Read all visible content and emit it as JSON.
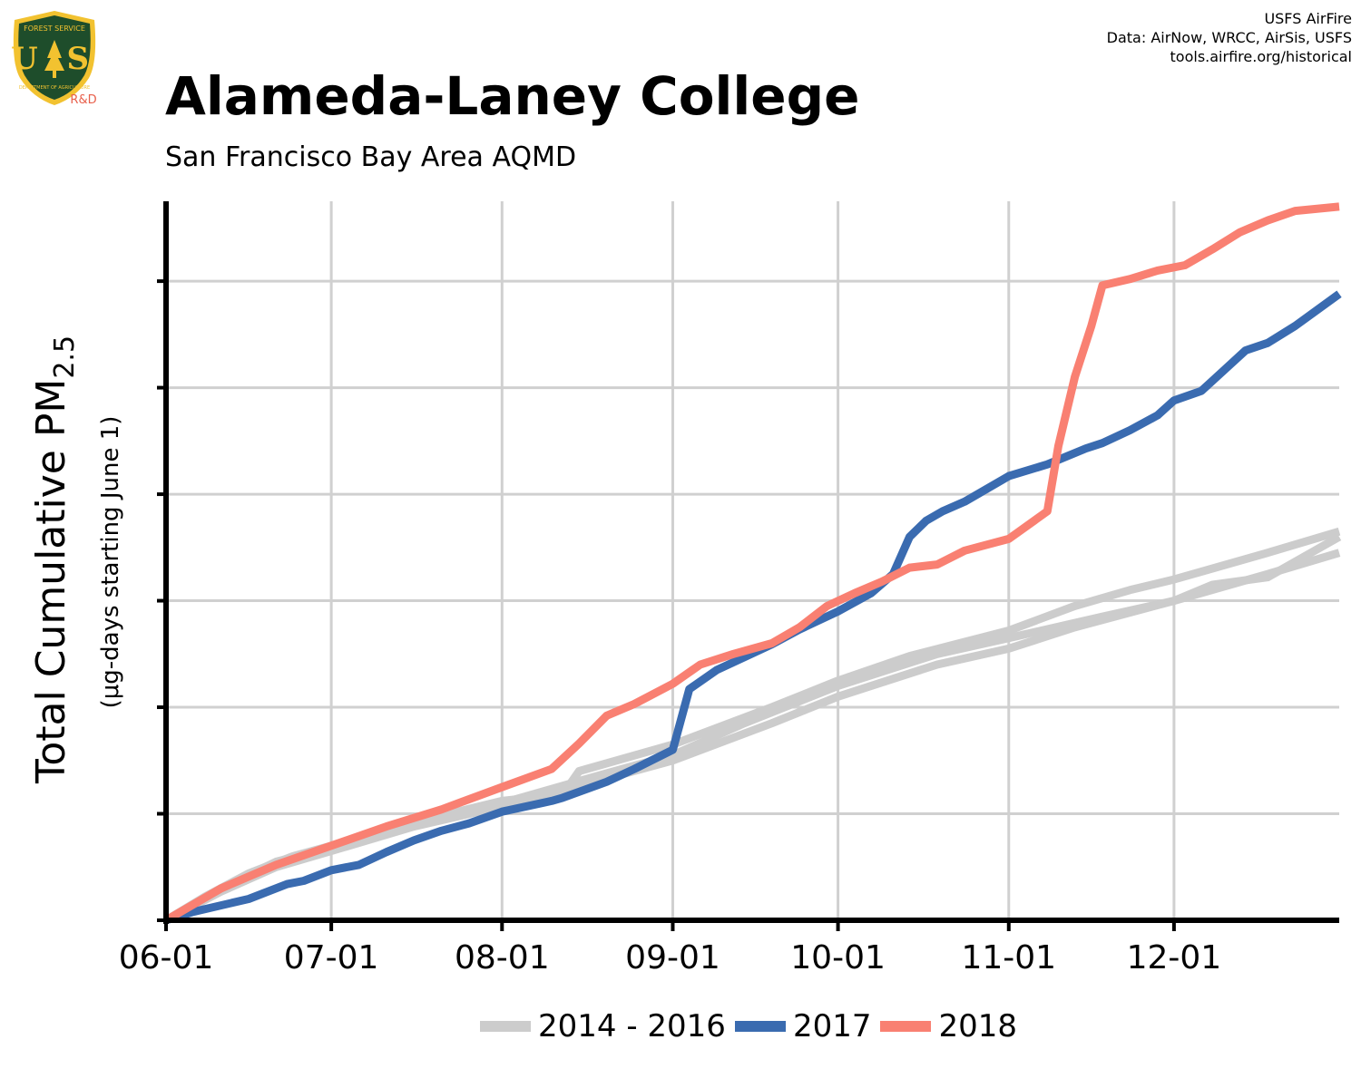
{
  "header": {
    "credits": [
      "USFS AirFire",
      "Data: AirNow, WRCC, AirSis, USFS",
      "tools.airfire.org/historical"
    ],
    "logo": {
      "arc_text": "FOREST SERVICE",
      "letters": "U S",
      "bottom_text": "DEPARTMENT OF AGRICULTURE",
      "tag": "R&D"
    }
  },
  "colors": {
    "historical": "#cccccc",
    "y2017": "#3a6bb0",
    "y2018": "#f98072",
    "grid": "#d0d0d0",
    "logo_green": "#1e4d2b",
    "logo_gold": "#f2c230"
  },
  "icons": {
    "logo": "usfs-shield-icon"
  },
  "chart_data": {
    "type": "line",
    "title": "Alameda-Laney College",
    "subtitle": "San Francisco Bay Area AQMD",
    "ylabel": "Total Cumulative PM",
    "ylabel_subscript": "2.5",
    "ylabel_units": "(μg-days starting June 1)",
    "xlabel": "",
    "x_unit": "day of year from June 1",
    "xlim": [
      0,
      213
    ],
    "ylim": [
      0,
      6.75
    ],
    "y_ticks": [
      0,
      1,
      2,
      3,
      4,
      5,
      6
    ],
    "x_ticks": [
      {
        "x": 0,
        "label": "06-01"
      },
      {
        "x": 30,
        "label": "07-01"
      },
      {
        "x": 61,
        "label": "08-01"
      },
      {
        "x": 92,
        "label": "09-01"
      },
      {
        "x": 122,
        "label": "10-01"
      },
      {
        "x": 153,
        "label": "11-01"
      },
      {
        "x": 183,
        "label": "12-01"
      }
    ],
    "grid": true,
    "legend_position": "bottom",
    "legend": [
      {
        "label": "2014 - 2016",
        "color": "#cccccc"
      },
      {
        "label": "2017",
        "color": "#3a6bb0"
      },
      {
        "label": "2018",
        "color": "#f98072"
      }
    ],
    "series": [
      {
        "name": "2014 - 2016",
        "group": "historical",
        "color": "#cccccc",
        "points": [
          [
            0,
            0
          ],
          [
            7,
            0.22
          ],
          [
            15,
            0.44
          ],
          [
            23,
            0.6
          ],
          [
            30,
            0.7
          ],
          [
            45,
            0.92
          ],
          [
            61,
            1.12
          ],
          [
            72,
            1.18
          ],
          [
            75,
            1.4
          ],
          [
            92,
            1.65
          ],
          [
            110,
            2.0
          ],
          [
            122,
            2.25
          ],
          [
            135,
            2.48
          ],
          [
            153,
            2.72
          ],
          [
            165,
            2.95
          ],
          [
            175,
            3.1
          ],
          [
            183,
            3.2
          ],
          [
            200,
            3.45
          ],
          [
            213,
            3.65
          ]
        ]
      },
      {
        "name": "2014 - 2016",
        "group": "historical",
        "color": "#cccccc",
        "points": [
          [
            0,
            0
          ],
          [
            10,
            0.3
          ],
          [
            20,
            0.55
          ],
          [
            30,
            0.68
          ],
          [
            45,
            0.9
          ],
          [
            61,
            1.1
          ],
          [
            80,
            1.38
          ],
          [
            92,
            1.55
          ],
          [
            105,
            1.85
          ],
          [
            122,
            2.2
          ],
          [
            140,
            2.5
          ],
          [
            153,
            2.65
          ],
          [
            170,
            2.85
          ],
          [
            183,
            3.0
          ],
          [
            190,
            3.15
          ],
          [
            200,
            3.22
          ],
          [
            213,
            3.6
          ]
        ]
      },
      {
        "name": "2014 - 2016",
        "group": "historical",
        "color": "#cccccc",
        "points": [
          [
            0,
            0
          ],
          [
            10,
            0.27
          ],
          [
            20,
            0.5
          ],
          [
            30,
            0.65
          ],
          [
            45,
            0.88
          ],
          [
            61,
            1.07
          ],
          [
            80,
            1.33
          ],
          [
            92,
            1.5
          ],
          [
            110,
            1.85
          ],
          [
            122,
            2.1
          ],
          [
            140,
            2.4
          ],
          [
            153,
            2.55
          ],
          [
            165,
            2.75
          ],
          [
            183,
            3.0
          ],
          [
            200,
            3.25
          ],
          [
            213,
            3.45
          ]
        ]
      },
      {
        "name": "2017",
        "color": "#3a6bb0",
        "points": [
          [
            0,
            0
          ],
          [
            5,
            0.08
          ],
          [
            15,
            0.2
          ],
          [
            22,
            0.34
          ],
          [
            25,
            0.37
          ],
          [
            30,
            0.47
          ],
          [
            35,
            0.52
          ],
          [
            40,
            0.64
          ],
          [
            45,
            0.75
          ],
          [
            50,
            0.84
          ],
          [
            55,
            0.91
          ],
          [
            61,
            1.02
          ],
          [
            70,
            1.12
          ],
          [
            72,
            1.15
          ],
          [
            80,
            1.3
          ],
          [
            85,
            1.42
          ],
          [
            92,
            1.6
          ],
          [
            95,
            2.17
          ],
          [
            100,
            2.35
          ],
          [
            105,
            2.47
          ],
          [
            110,
            2.59
          ],
          [
            115,
            2.73
          ],
          [
            122,
            2.9
          ],
          [
            128,
            3.07
          ],
          [
            132,
            3.25
          ],
          [
            135,
            3.6
          ],
          [
            138,
            3.75
          ],
          [
            141,
            3.84
          ],
          [
            145,
            3.93
          ],
          [
            153,
            4.17
          ],
          [
            160,
            4.28
          ],
          [
            167,
            4.43
          ],
          [
            170,
            4.48
          ],
          [
            175,
            4.6
          ],
          [
            180,
            4.74
          ],
          [
            183,
            4.88
          ],
          [
            188,
            4.97
          ],
          [
            192,
            5.16
          ],
          [
            196,
            5.35
          ],
          [
            200,
            5.42
          ],
          [
            205,
            5.58
          ],
          [
            213,
            5.88
          ]
        ]
      },
      {
        "name": "2018",
        "color": "#f98072",
        "points": [
          [
            0,
            0
          ],
          [
            10,
            0.3
          ],
          [
            20,
            0.52
          ],
          [
            30,
            0.7
          ],
          [
            40,
            0.88
          ],
          [
            50,
            1.04
          ],
          [
            61,
            1.25
          ],
          [
            70,
            1.42
          ],
          [
            75,
            1.66
          ],
          [
            80,
            1.92
          ],
          [
            85,
            2.03
          ],
          [
            92,
            2.22
          ],
          [
            97,
            2.4
          ],
          [
            103,
            2.5
          ],
          [
            110,
            2.6
          ],
          [
            115,
            2.75
          ],
          [
            120,
            2.95
          ],
          [
            125,
            3.07
          ],
          [
            130,
            3.18
          ],
          [
            135,
            3.31
          ],
          [
            140,
            3.34
          ],
          [
            145,
            3.47
          ],
          [
            153,
            3.58
          ],
          [
            160,
            3.84
          ],
          [
            162,
            4.45
          ],
          [
            165,
            5.1
          ],
          [
            168,
            5.58
          ],
          [
            170,
            5.96
          ],
          [
            175,
            6.02
          ],
          [
            180,
            6.1
          ],
          [
            185,
            6.15
          ],
          [
            190,
            6.3
          ],
          [
            195,
            6.46
          ],
          [
            200,
            6.57
          ],
          [
            205,
            6.66
          ],
          [
            213,
            6.7
          ]
        ]
      }
    ]
  }
}
